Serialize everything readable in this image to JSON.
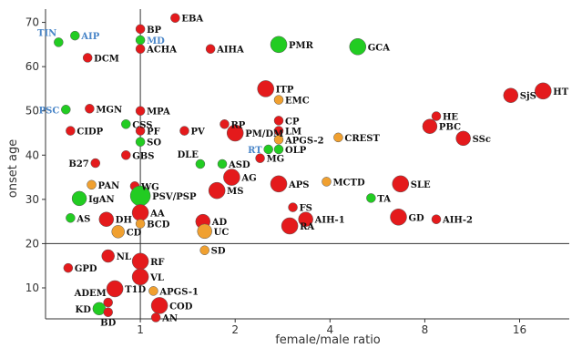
{
  "chart_data": {
    "type": "scatter",
    "title": "",
    "xlabel": "female/male ratio",
    "ylabel": "onset age",
    "x_scale": "log2",
    "xlim": [
      0.5,
      23
    ],
    "ylim": [
      3,
      73
    ],
    "x_ticks": [
      1,
      2,
      4,
      8,
      16
    ],
    "x_tick_labels": [
      "1",
      "2",
      "4",
      "8",
      "16"
    ],
    "y_ticks": [
      10,
      20,
      30,
      40,
      50,
      60,
      70
    ],
    "y_tick_labels": [
      "10",
      "20",
      "30",
      "40",
      "50",
      "60",
      "70"
    ],
    "reference_lines": {
      "x": 1,
      "y": 20
    },
    "grid": false,
    "colors": {
      "red": "#e41a1c",
      "green": "#22cc22",
      "orange": "#f0a030",
      "blue_label": "#4a86c8"
    },
    "points": [
      {
        "label": "TIN",
        "x": 0.55,
        "y": 65.5,
        "c": "green",
        "s": 5,
        "blue": true,
        "pos": "above-left"
      },
      {
        "label": "AIP",
        "x": 0.62,
        "y": 67,
        "c": "green",
        "s": 5,
        "blue": true,
        "pos": "right"
      },
      {
        "label": "DCM",
        "x": 0.68,
        "y": 62,
        "c": "red",
        "s": 5,
        "pos": "right"
      },
      {
        "label": "EBA",
        "x": 1.29,
        "y": 71,
        "c": "red",
        "s": 5,
        "pos": "right"
      },
      {
        "label": "BP",
        "x": 1.0,
        "y": 68.5,
        "c": "red",
        "s": 5,
        "pos": "right"
      },
      {
        "label": "MD",
        "x": 1.0,
        "y": 66,
        "c": "green",
        "s": 5,
        "blue": true,
        "pos": "right"
      },
      {
        "label": "ACHA",
        "x": 1.0,
        "y": 64,
        "c": "red",
        "s": 5,
        "pos": "right"
      },
      {
        "label": "AIHA",
        "x": 1.67,
        "y": 64,
        "c": "red",
        "s": 5,
        "pos": "right"
      },
      {
        "label": "PMR",
        "x": 2.75,
        "y": 65,
        "c": "green",
        "s": 9,
        "pos": "right"
      },
      {
        "label": "GCA",
        "x": 4.9,
        "y": 64.5,
        "c": "green",
        "s": 9,
        "pos": "right"
      },
      {
        "label": "PSC",
        "x": 0.58,
        "y": 50.3,
        "c": "green",
        "s": 5,
        "blue": true,
        "pos": "left"
      },
      {
        "label": "MGN",
        "x": 0.69,
        "y": 50.5,
        "c": "red",
        "s": 5,
        "pos": "right"
      },
      {
        "label": "MPA",
        "x": 1.0,
        "y": 50,
        "c": "red",
        "s": 5,
        "pos": "right"
      },
      {
        "label": "ITP",
        "x": 2.5,
        "y": 55,
        "c": "red",
        "s": 9,
        "pos": "right"
      },
      {
        "label": "EMC",
        "x": 2.75,
        "y": 52.5,
        "c": "orange",
        "s": 5,
        "pos": "right"
      },
      {
        "label": "CSS",
        "x": 0.9,
        "y": 47,
        "c": "green",
        "s": 5,
        "pos": "right"
      },
      {
        "label": "CIDP",
        "x": 0.6,
        "y": 45.5,
        "c": "red",
        "s": 5,
        "pos": "right"
      },
      {
        "label": "PF",
        "x": 1.0,
        "y": 45.5,
        "c": "red",
        "s": 5,
        "pos": "right"
      },
      {
        "label": "SO",
        "x": 1.0,
        "y": 43,
        "c": "green",
        "s": 5,
        "pos": "right"
      },
      {
        "label": "PV",
        "x": 1.38,
        "y": 45.5,
        "c": "red",
        "s": 5,
        "pos": "right"
      },
      {
        "label": "RP",
        "x": 1.85,
        "y": 47,
        "c": "red",
        "s": 5,
        "pos": "right"
      },
      {
        "label": "PM/DM",
        "x": 2.0,
        "y": 45,
        "c": "red",
        "s": 9,
        "pos": "right"
      },
      {
        "label": "CP",
        "x": 2.75,
        "y": 47.8,
        "c": "red",
        "s": 5,
        "pos": "right"
      },
      {
        "label": "LM",
        "x": 2.75,
        "y": 45.5,
        "c": "red",
        "s": 5,
        "pos": "right"
      },
      {
        "label": "APGS-2",
        "x": 2.75,
        "y": 43.5,
        "c": "orange",
        "s": 5,
        "pos": "right"
      },
      {
        "label": "CREST",
        "x": 4.25,
        "y": 44,
        "c": "orange",
        "s": 5,
        "pos": "right"
      },
      {
        "label": "RT",
        "x": 2.55,
        "y": 41.3,
        "c": "green",
        "s": 5,
        "blue": true,
        "pos": "left"
      },
      {
        "label": "OLP",
        "x": 2.75,
        "y": 41.3,
        "c": "green",
        "s": 5,
        "pos": "right"
      },
      {
        "label": "MG",
        "x": 2.4,
        "y": 39.3,
        "c": "red",
        "s": 5,
        "pos": "right"
      },
      {
        "label": "GBS",
        "x": 0.9,
        "y": 40,
        "c": "red",
        "s": 5,
        "pos": "right"
      },
      {
        "label": "B27",
        "x": 0.72,
        "y": 38.2,
        "c": "red",
        "s": 5,
        "pos": "left"
      },
      {
        "label": "DLE",
        "x": 1.55,
        "y": 38,
        "c": "green",
        "s": 5,
        "pos": "above-left"
      },
      {
        "label": "ASD",
        "x": 1.82,
        "y": 38,
        "c": "green",
        "s": 5,
        "pos": "right"
      },
      {
        "label": "AG",
        "x": 1.95,
        "y": 35,
        "c": "red",
        "s": 9,
        "pos": "right"
      },
      {
        "label": "PAN",
        "x": 0.7,
        "y": 33.3,
        "c": "orange",
        "s": 5,
        "pos": "right"
      },
      {
        "label": "WG",
        "x": 0.96,
        "y": 33,
        "c": "red",
        "s": 5,
        "pos": "right"
      },
      {
        "label": "APS",
        "x": 2.75,
        "y": 33.5,
        "c": "red",
        "s": 9,
        "pos": "right"
      },
      {
        "label": "MCTD",
        "x": 3.9,
        "y": 34,
        "c": "orange",
        "s": 5,
        "pos": "right"
      },
      {
        "label": "SLE",
        "x": 6.7,
        "y": 33.5,
        "c": "red",
        "s": 9,
        "pos": "right"
      },
      {
        "label": "IgAN",
        "x": 0.64,
        "y": 30.2,
        "c": "green",
        "s": 8,
        "pos": "right"
      },
      {
        "label": "PSV/PSP",
        "x": 1.0,
        "y": 30.8,
        "c": "green",
        "s": 11,
        "pos": "right"
      },
      {
        "label": "MS",
        "x": 1.75,
        "y": 32,
        "c": "red",
        "s": 9,
        "pos": "right"
      },
      {
        "label": "TA",
        "x": 5.4,
        "y": 30.3,
        "c": "green",
        "s": 5,
        "pos": "right"
      },
      {
        "label": "FS",
        "x": 3.05,
        "y": 28.2,
        "c": "red",
        "s": 5,
        "pos": "right"
      },
      {
        "label": "AS",
        "x": 0.6,
        "y": 25.8,
        "c": "green",
        "s": 5,
        "pos": "right"
      },
      {
        "label": "DH",
        "x": 0.78,
        "y": 25.5,
        "c": "red",
        "s": 8,
        "pos": "right"
      },
      {
        "label": "AA",
        "x": 1.0,
        "y": 27,
        "c": "red",
        "s": 9,
        "pos": "right"
      },
      {
        "label": "BCD",
        "x": 1.0,
        "y": 24.5,
        "c": "orange",
        "s": 5,
        "pos": "right"
      },
      {
        "label": "AD",
        "x": 1.58,
        "y": 25,
        "c": "red",
        "s": 8,
        "pos": "right"
      },
      {
        "label": "AIH-1",
        "x": 3.35,
        "y": 25.5,
        "c": "red",
        "s": 8,
        "pos": "right"
      },
      {
        "label": "GD",
        "x": 6.6,
        "y": 26,
        "c": "red",
        "s": 9,
        "pos": "right"
      },
      {
        "label": "AIH-2",
        "x": 8.7,
        "y": 25.5,
        "c": "red",
        "s": 5,
        "pos": "right"
      },
      {
        "label": "CD",
        "x": 0.85,
        "y": 22.7,
        "c": "orange",
        "s": 7,
        "pos": "right"
      },
      {
        "label": "UC",
        "x": 1.6,
        "y": 22.8,
        "c": "orange",
        "s": 8,
        "pos": "right"
      },
      {
        "label": "RA",
        "x": 2.98,
        "y": 24,
        "c": "red",
        "s": 9,
        "pos": "right"
      },
      {
        "label": "SD",
        "x": 1.6,
        "y": 18.5,
        "c": "orange",
        "s": 5,
        "pos": "right"
      },
      {
        "label": "NL",
        "x": 0.79,
        "y": 17.2,
        "c": "red",
        "s": 7,
        "pos": "right"
      },
      {
        "label": "GPD",
        "x": 0.59,
        "y": 14.5,
        "c": "red",
        "s": 5,
        "pos": "right"
      },
      {
        "label": "RF",
        "x": 1.0,
        "y": 16,
        "c": "red",
        "s": 9,
        "pos": "right"
      },
      {
        "label": "VL",
        "x": 1.0,
        "y": 12.5,
        "c": "red",
        "s": 9,
        "pos": "right"
      },
      {
        "label": "T1D",
        "x": 0.83,
        "y": 9.8,
        "c": "red",
        "s": 9,
        "pos": "right"
      },
      {
        "label": "APGS-1",
        "x": 1.1,
        "y": 9.3,
        "c": "orange",
        "s": 5,
        "pos": "right"
      },
      {
        "label": "ADEM",
        "x": 0.79,
        "y": 6.7,
        "c": "red",
        "s": 5,
        "pos": "above-left"
      },
      {
        "label": "COD",
        "x": 1.15,
        "y": 6,
        "c": "red",
        "s": 9,
        "pos": "right"
      },
      {
        "label": "KD",
        "x": 0.74,
        "y": 5.3,
        "c": "green",
        "s": 7,
        "pos": "left"
      },
      {
        "label": "BD",
        "x": 0.79,
        "y": 4.5,
        "c": "red",
        "s": 5,
        "pos": "below"
      },
      {
        "label": "AN",
        "x": 1.12,
        "y": 3.3,
        "c": "red",
        "s": 5,
        "pos": "right"
      },
      {
        "label": "PBC",
        "x": 8.3,
        "y": 46.5,
        "c": "red",
        "s": 8,
        "pos": "right"
      },
      {
        "label": "HE",
        "x": 8.7,
        "y": 48.8,
        "c": "red",
        "s": 5,
        "pos": "right"
      },
      {
        "label": "SSc",
        "x": 10.6,
        "y": 43.8,
        "c": "red",
        "s": 8,
        "pos": "right"
      },
      {
        "label": "SjS",
        "x": 15.0,
        "y": 53.5,
        "c": "red",
        "s": 8,
        "pos": "right"
      },
      {
        "label": "HT",
        "x": 19.0,
        "y": 54.5,
        "c": "red",
        "s": 9,
        "pos": "right"
      }
    ]
  }
}
